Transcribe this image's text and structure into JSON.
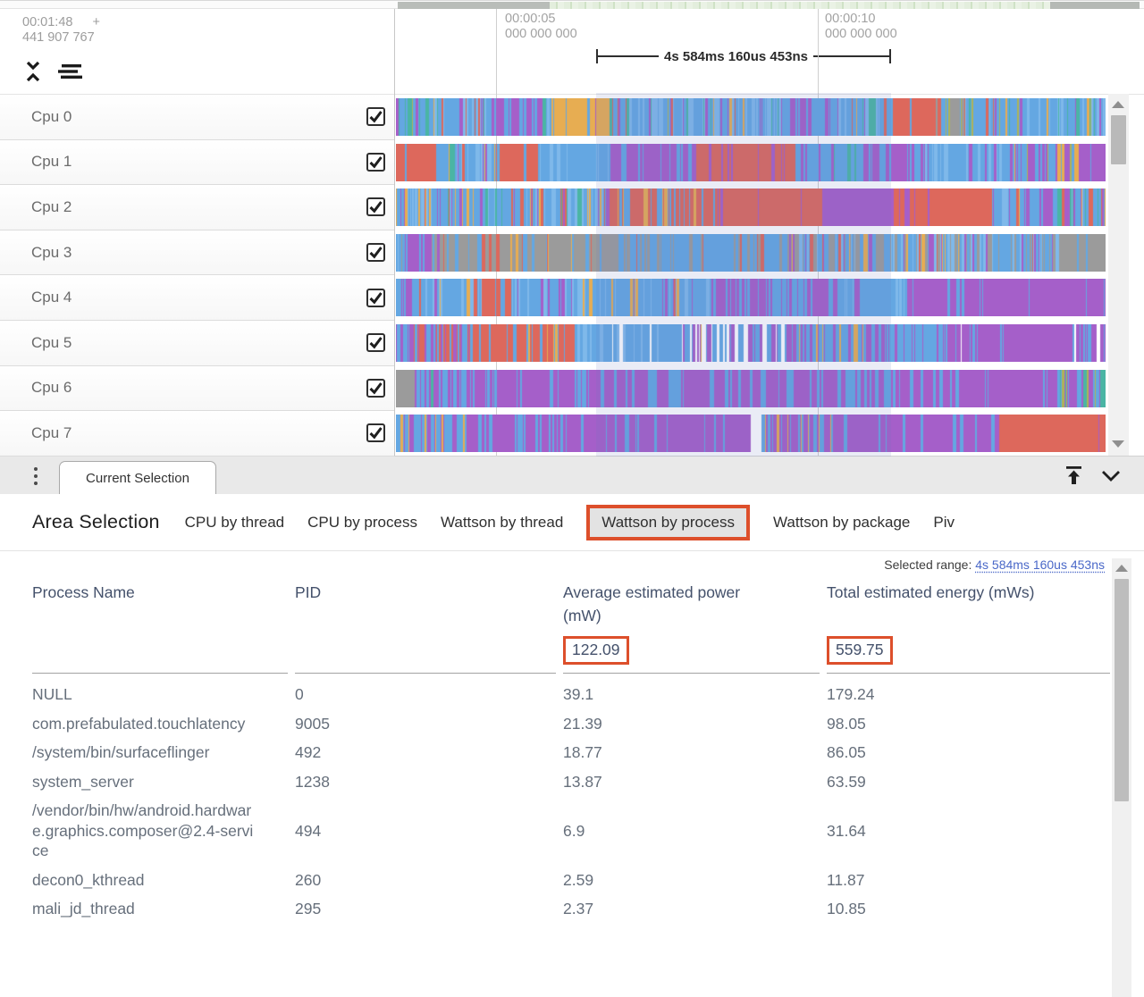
{
  "colors": {
    "accent_orange": "#dd4f2b",
    "link_blue": "#4a68c8",
    "header_text": "#44516b",
    "row_text": "#666f7b"
  },
  "ruler": {
    "cursor_time": "00:01:48",
    "cursor_plus": "+",
    "cursor_ns": "441 907 767",
    "ticks": [
      {
        "time": "00:00:05",
        "ns": "000 000 000"
      },
      {
        "time": "00:00:10",
        "ns": "000 000 000"
      }
    ],
    "selection_duration": "4s 584ms 160us 453ns"
  },
  "tracks": {
    "palette": {
      "blue": "#64a7e2",
      "blue2": "#7fb9ea",
      "purple": "#a55fc9",
      "red": "#dd685c",
      "orange": "#e7ad52",
      "teal": "#4ab5a4",
      "gray": "#9b9b9b",
      "olive": "#aeb457",
      "white": "#ffffff"
    },
    "rows": [
      {
        "label": "Cpu 0",
        "checked": true,
        "seed": 11,
        "base": {
          "blue": 5,
          "blue2": 2,
          "purple": 1.1,
          "teal": 0.5,
          "orange": 0.4,
          "red": 0.3,
          "olive": 0.2
        },
        "blocks": [
          {
            "from": 0,
            "to": 0.045,
            "colors": {
              "teal": 2,
              "blue": 3,
              "purple": 1,
              "olive": 0.4
            }
          },
          {
            "from": 0.13,
            "to": 0.205,
            "colors": {
              "purple": 8,
              "blue": 0.7
            }
          },
          {
            "from": 0.215,
            "to": 0.3,
            "colors": {
              "orange": 6,
              "blue": 1.4,
              "purple": 0.4
            }
          },
          {
            "from": 0.55,
            "to": 0.62,
            "colors": {
              "blue": 4,
              "purple": 2
            }
          },
          {
            "from": 0.7,
            "to": 0.765,
            "colors": {
              "red": 7,
              "blue": 0.7,
              "gray": 0.5
            }
          },
          {
            "from": 0.765,
            "to": 0.8,
            "colors": {
              "gray": 2,
              "blue": 3,
              "olive": 0.4
            }
          }
        ]
      },
      {
        "label": "Cpu 1",
        "checked": true,
        "seed": 22,
        "base": {
          "blue": 5,
          "blue2": 2,
          "purple": 1,
          "red": 0.5,
          "orange": 0.3,
          "teal": 0.3
        },
        "blocks": [
          {
            "from": 0,
            "to": 0.055,
            "colors": {
              "red": 8,
              "blue": 0.5
            }
          },
          {
            "from": 0.14,
            "to": 0.2,
            "colors": {
              "red": 7,
              "blue": 0.7
            }
          },
          {
            "from": 0.2,
            "to": 0.3,
            "colors": {
              "blue": 6,
              "blue2": 2,
              "orange": 0.3
            }
          },
          {
            "from": 0.3,
            "to": 0.42,
            "colors": {
              "purple": 5,
              "blue": 1.4
            }
          },
          {
            "from": 0.42,
            "to": 0.56,
            "colors": {
              "red": 6,
              "purple": 0.8
            }
          },
          {
            "from": 0.56,
            "to": 0.66,
            "colors": {
              "blue": 5,
              "teal": 0.4,
              "purple": 0.8
            }
          },
          {
            "from": 0.66,
            "to": 0.73,
            "colors": {
              "purple": 4,
              "blue": 2
            }
          },
          {
            "from": 0.73,
            "to": 0.86,
            "colors": {
              "blue": 6,
              "blue2": 2,
              "purple": 0.5
            }
          },
          {
            "from": 0.86,
            "to": 0.96,
            "colors": {
              "blue": 3,
              "purple": 2,
              "olive": 0.4,
              "orange": 0.4
            }
          },
          {
            "from": 0.96,
            "to": 1,
            "colors": {
              "purple": 6,
              "blue": 1
            }
          }
        ]
      },
      {
        "label": "Cpu 2",
        "checked": true,
        "seed": 33,
        "base": {
          "blue": 5,
          "blue2": 1.5,
          "purple": 1,
          "red": 1,
          "orange": 0.4,
          "teal": 0.4
        },
        "blocks": [
          {
            "from": 0.3,
            "to": 0.45,
            "colors": {
              "red": 4,
              "blue": 1.3,
              "orange": 0.3
            }
          },
          {
            "from": 0.45,
            "to": 0.6,
            "colors": {
              "red": 6,
              "purple": 0.4
            }
          },
          {
            "from": 0.6,
            "to": 0.7,
            "colors": {
              "purple": 7,
              "red": 0.5
            }
          },
          {
            "from": 0.7,
            "to": 0.78,
            "colors": {
              "red": 5,
              "purple": 0.8
            }
          },
          {
            "from": 0.78,
            "to": 0.84,
            "colors": {
              "red": 7
            }
          },
          {
            "from": 0.88,
            "to": 0.93,
            "colors": {
              "purple": 3,
              "blue": 3
            }
          }
        ]
      },
      {
        "label": "Cpu 3",
        "checked": true,
        "seed": 44,
        "base": {
          "blue": 4,
          "blue2": 1.5,
          "gray": 2.2,
          "purple": 0.8,
          "red": 0.5,
          "orange": 0.3
        },
        "blocks": [
          {
            "from": 0.01,
            "to": 0.05,
            "colors": {
              "purple": 5,
              "blue": 1
            }
          },
          {
            "from": 0.06,
            "to": 0.3,
            "colors": {
              "gray": 5,
              "blue": 1.5,
              "red": 0.5,
              "orange": 0.3
            }
          },
          {
            "from": 0.3,
            "to": 0.55,
            "colors": {
              "blue": 4,
              "gray": 1.6,
              "red": 0.4
            }
          },
          {
            "from": 0.93,
            "to": 1,
            "colors": {
              "gray": 7,
              "blue": 0.6
            }
          }
        ]
      },
      {
        "label": "Cpu 4",
        "checked": true,
        "seed": 55,
        "base": {
          "blue": 6,
          "blue2": 2,
          "purple": 0.7,
          "orange": 0.3,
          "red": 0.3
        },
        "blocks": [
          {
            "from": 0,
            "to": 0.03,
            "colors": {
              "purple": 3,
              "blue": 3
            }
          },
          {
            "from": 0.12,
            "to": 0.16,
            "colors": {
              "red": 3,
              "blue": 3
            }
          },
          {
            "from": 0.44,
            "to": 0.52,
            "colors": {
              "purple": 5,
              "blue": 1.4
            }
          },
          {
            "from": 0.52,
            "to": 0.62,
            "colors": {
              "purple": 2.5,
              "blue": 3
            }
          },
          {
            "from": 0.72,
            "to": 0.84,
            "colors": {
              "purple": 5,
              "blue": 1.2
            }
          },
          {
            "from": 0.84,
            "to": 1,
            "colors": {
              "purple": 6,
              "blue": 0.8
            }
          }
        ]
      },
      {
        "label": "Cpu 5",
        "checked": true,
        "seed": 66,
        "base": {
          "blue": 4,
          "purple": 2,
          "orange": 0.4,
          "red": 0.4,
          "white": 0.3
        },
        "blocks": [
          {
            "from": 0,
            "to": 0.07,
            "colors": {
              "purple": 3,
              "blue": 2,
              "red": 1
            }
          },
          {
            "from": 0.07,
            "to": 0.15,
            "colors": {
              "red": 4,
              "purple": 1.5,
              "blue": 1
            }
          },
          {
            "from": 0.15,
            "to": 0.25,
            "colors": {
              "red": 5,
              "orange": 0.7,
              "blue": 1
            }
          },
          {
            "from": 0.25,
            "to": 0.4,
            "colors": {
              "blue": 7,
              "blue2": 2,
              "white": 0.3
            }
          },
          {
            "from": 0.4,
            "to": 0.55,
            "colors": {
              "blue": 2,
              "purple": 1.5,
              "white": 1.1,
              "orange": 0.3
            }
          },
          {
            "from": 0.55,
            "to": 0.68,
            "colors": {
              "blue": 3,
              "purple": 2,
              "orange": 0.4
            }
          },
          {
            "from": 0.68,
            "to": 0.78,
            "colors": {
              "blue": 4,
              "purple": 1
            }
          },
          {
            "from": 0.78,
            "to": 0.95,
            "colors": {
              "purple": 6,
              "white": 0.4,
              "blue": 0.5
            }
          },
          {
            "from": 0.95,
            "to": 1,
            "colors": {
              "blue": 2,
              "purple": 2,
              "white": 0.4
            }
          }
        ]
      },
      {
        "label": "Cpu 6",
        "checked": true,
        "seed": 77,
        "base": {
          "purple": 4,
          "blue": 2
        },
        "blocks": [
          {
            "from": 0,
            "to": 0.025,
            "colors": {
              "gray": 7
            }
          },
          {
            "from": 0.025,
            "to": 0.1,
            "colors": {
              "purple": 3,
              "blue": 3,
              "teal": 0.3
            }
          },
          {
            "from": 0.1,
            "to": 0.32,
            "colors": {
              "purple": 6,
              "blue": 1
            }
          },
          {
            "from": 0.32,
            "to": 0.4,
            "colors": {
              "blue": 3,
              "purple": 2
            }
          },
          {
            "from": 0.4,
            "to": 0.62,
            "colors": {
              "purple": 5,
              "blue": 1.2
            }
          },
          {
            "from": 0.62,
            "to": 0.7,
            "colors": {
              "blue": 3,
              "purple": 2.5
            }
          },
          {
            "from": 0.7,
            "to": 0.93,
            "colors": {
              "purple": 7,
              "blue": 0.6
            }
          },
          {
            "from": 0.93,
            "to": 1,
            "colors": {
              "teal": 1.5,
              "blue": 2,
              "purple": 2,
              "olive": 0.4
            }
          }
        ]
      },
      {
        "label": "Cpu 7",
        "checked": true,
        "seed": 88,
        "base": {
          "purple": 4,
          "blue": 3
        },
        "blocks": [
          {
            "from": 0,
            "to": 0.05,
            "colors": {
              "blue": 4,
              "purple": 2,
              "orange": 0.8
            }
          },
          {
            "from": 0.05,
            "to": 0.1,
            "colors": {
              "orange": 1.5,
              "blue": 2.5,
              "purple": 2,
              "olive": 0.4
            }
          },
          {
            "from": 0.1,
            "to": 0.24,
            "colors": {
              "purple": 4,
              "blue": 2
            }
          },
          {
            "from": 0.24,
            "to": 0.5,
            "colors": {
              "purple": 7,
              "blue": 0.8
            }
          },
          {
            "from": 0.5,
            "to": 0.515,
            "colors": {
              "white": 6
            }
          },
          {
            "from": 0.515,
            "to": 0.62,
            "colors": {
              "purple": 3,
              "blue": 2,
              "orange": 0.6
            }
          },
          {
            "from": 0.62,
            "to": 0.85,
            "colors": {
              "purple": 6,
              "blue": 0.8
            }
          },
          {
            "from": 0.85,
            "to": 1,
            "colors": {
              "red": 7,
              "purple": 0.3
            }
          }
        ]
      }
    ]
  },
  "tabstrip": {
    "current_tab": "Current Selection"
  },
  "panel": {
    "title": "Area Selection",
    "tabs": [
      {
        "label": "CPU by thread",
        "selected": false
      },
      {
        "label": "CPU by process",
        "selected": false
      },
      {
        "label": "Wattson by thread",
        "selected": false
      },
      {
        "label": "Wattson by process",
        "selected": true
      },
      {
        "label": "Wattson by package",
        "selected": false
      },
      {
        "label": "Piv",
        "selected": false
      }
    ],
    "selected_range_label": "Selected range:",
    "selected_range_value": "4s 584ms 160us 453ns",
    "table": {
      "headers": [
        "Process Name",
        "PID",
        "Average estimated power (mW)",
        "Total estimated energy (mWs)"
      ],
      "summary": {
        "avg_power": "122.09",
        "total_energy": "559.75"
      },
      "rows": [
        {
          "process": "NULL",
          "pid": "0",
          "avg_power": "39.1",
          "total_energy": "179.24"
        },
        {
          "process": "com.prefabulated.touchlatency",
          "pid": "9005",
          "avg_power": "21.39",
          "total_energy": "98.05"
        },
        {
          "process": "/system/bin/surfaceflinger",
          "pid": "492",
          "avg_power": "18.77",
          "total_energy": "86.05"
        },
        {
          "process": "system_server",
          "pid": "1238",
          "avg_power": "13.87",
          "total_energy": "63.59"
        },
        {
          "process": "/vendor/bin/hw/android.hardware.graphics.composer@2.4-service",
          "pid": "494",
          "avg_power": "6.9",
          "total_energy": "31.64"
        },
        {
          "process": "decon0_kthread",
          "pid": "260",
          "avg_power": "2.59",
          "total_energy": "11.87"
        },
        {
          "process": "mali_jd_thread",
          "pid": "295",
          "avg_power": "2.37",
          "total_energy": "10.85"
        }
      ]
    }
  }
}
